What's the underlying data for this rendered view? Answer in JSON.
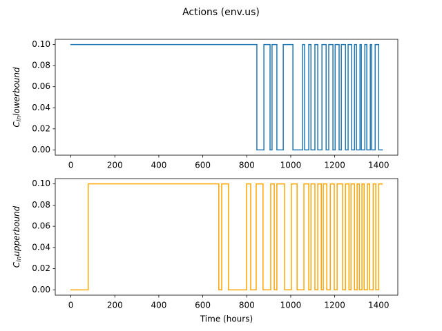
{
  "title": "Actions (env.us)",
  "chart_data": [
    {
      "type": "line",
      "drawstyle": "steps-post",
      "ylabel": [
        "C",
        "in",
        "lowerbound"
      ],
      "x": [
        0,
        846,
        878,
        906,
        915,
        937,
        966,
        1010,
        1054,
        1063,
        1082,
        1092,
        1110,
        1123,
        1142,
        1161,
        1173,
        1192,
        1202,
        1220,
        1230,
        1249,
        1261,
        1277,
        1290,
        1299,
        1315,
        1321,
        1337,
        1346,
        1362,
        1368,
        1384,
        1400,
        1416
      ],
      "series": [
        {
          "color": "#1f77b4",
          "values": [
            0.1,
            0,
            0.1,
            0,
            0.1,
            0,
            0.1,
            0,
            0.1,
            0,
            0.1,
            0,
            0.1,
            0,
            0.1,
            0,
            0.1,
            0,
            0.1,
            0,
            0.1,
            0,
            0.1,
            0,
            0.1,
            0,
            0.1,
            0,
            0.1,
            0,
            0.1,
            0,
            0.1,
            0,
            0
          ]
        }
      ],
      "xlim": [
        -71,
        1487
      ],
      "xticks": [
        0,
        200,
        400,
        600,
        800,
        1000,
        1200,
        1400
      ],
      "ylim": [
        -0.005,
        0.105
      ],
      "yticks": [
        {
          "value": 0,
          "label": "0.00"
        },
        {
          "value": 0.02,
          "label": "0.02"
        },
        {
          "value": 0.04,
          "label": "0.04"
        },
        {
          "value": 0.06,
          "label": "0.06"
        },
        {
          "value": 0.08,
          "label": "0.08"
        },
        {
          "value": 0.1,
          "label": "0.10"
        }
      ]
    },
    {
      "type": "line",
      "drawstyle": "steps-post",
      "ylabel": [
        "C",
        "in",
        "upperbound"
      ],
      "xlabel": "Time (hours)",
      "x": [
        0,
        79,
        673,
        686,
        717,
        799,
        818,
        843,
        874,
        909,
        925,
        937,
        972,
        1003,
        1029,
        1060,
        1082,
        1092,
        1110,
        1123,
        1139,
        1148,
        1164,
        1180,
        1198,
        1211,
        1236,
        1249,
        1265,
        1274,
        1290,
        1302,
        1312,
        1324,
        1334,
        1349,
        1359,
        1375,
        1387,
        1400,
        1416
      ],
      "series": [
        {
          "color": "#ffa500",
          "values": [
            0,
            0.1,
            0,
            0.1,
            0,
            0.1,
            0,
            0.1,
            0,
            0.1,
            0,
            0.1,
            0,
            0.1,
            0,
            0.1,
            0,
            0.1,
            0,
            0.1,
            0,
            0.1,
            0,
            0.1,
            0,
            0.1,
            0,
            0.1,
            0,
            0.1,
            0,
            0.1,
            0,
            0.1,
            0,
            0.1,
            0,
            0.1,
            0,
            0.1,
            0.1
          ]
        }
      ],
      "xlim": [
        -71,
        1487
      ],
      "xticks": [
        0,
        200,
        400,
        600,
        800,
        1000,
        1200,
        1400
      ],
      "ylim": [
        -0.005,
        0.105
      ],
      "yticks": [
        {
          "value": 0,
          "label": "0.00"
        },
        {
          "value": 0.02,
          "label": "0.02"
        },
        {
          "value": 0.04,
          "label": "0.04"
        },
        {
          "value": 0.06,
          "label": "0.06"
        },
        {
          "value": 0.08,
          "label": "0.08"
        },
        {
          "value": 0.1,
          "label": "0.10"
        }
      ]
    }
  ]
}
